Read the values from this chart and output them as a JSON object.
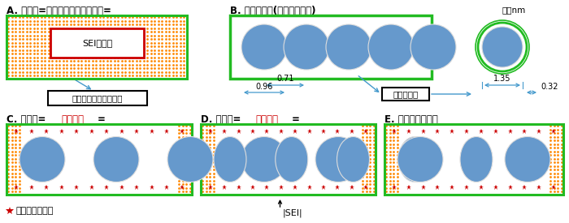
{
  "title_A": "A. 充電後=カーボンナノチューブ=",
  "title_B": "B. ピーポッド(さやえんどう)",
  "unit_B": "単位nm",
  "title_C_pre": "C. 充電後=",
  "title_C_red": "両持ち論",
  "title_C_suf": "=",
  "title_D_pre": "D. 充電後=",
  "title_D_red": "片持ち論",
  "title_D_suf": "=",
  "title_E": "E. 仮想ピーポッド",
  "label_A_inner": "SEI及び滓",
  "label_A_outer": "カーボンナノチューブ",
  "label_B_fullerene": "フラーレン",
  "dim_071": "0.71",
  "dim_096": "0.96",
  "dim_135": "1.35",
  "dim_032": "0.32",
  "legend_lithium": "リチウムイオン",
  "legend_sei": "|SEI|",
  "green": "#22bb22",
  "red": "#cc0000",
  "blue_fill": "#6699cc",
  "orange": "#ff8800",
  "blue_arrow": "#4499cc",
  "black": "#000000"
}
